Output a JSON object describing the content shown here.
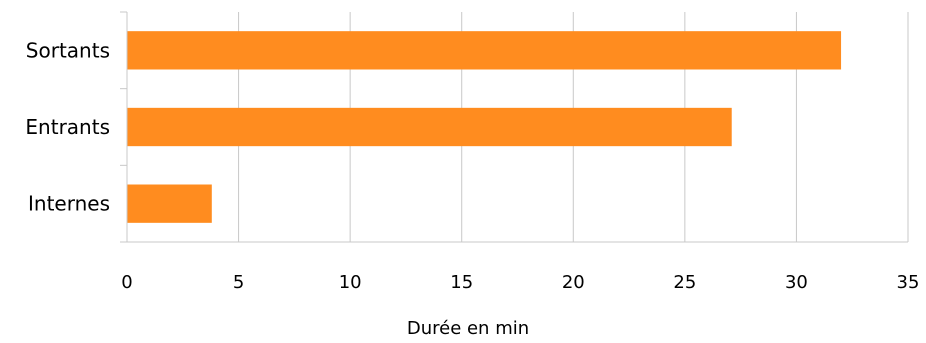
{
  "chart_data": {
    "type": "bar",
    "orientation": "horizontal",
    "categories": [
      "Sortants",
      "Entrants",
      "Internes"
    ],
    "values": [
      32,
      27.1,
      3.8
    ],
    "title": "",
    "xlabel": "Durée en min",
    "ylabel": "",
    "xlim": [
      0,
      35
    ],
    "xticks": [
      "0",
      "5",
      "10",
      "15",
      "20",
      "25",
      "30",
      "35"
    ],
    "grid": "vertical",
    "legend": "none",
    "bar_color": "#FF8C1F",
    "grid_color": "#C8C8C8",
    "text_color": "#000000"
  }
}
